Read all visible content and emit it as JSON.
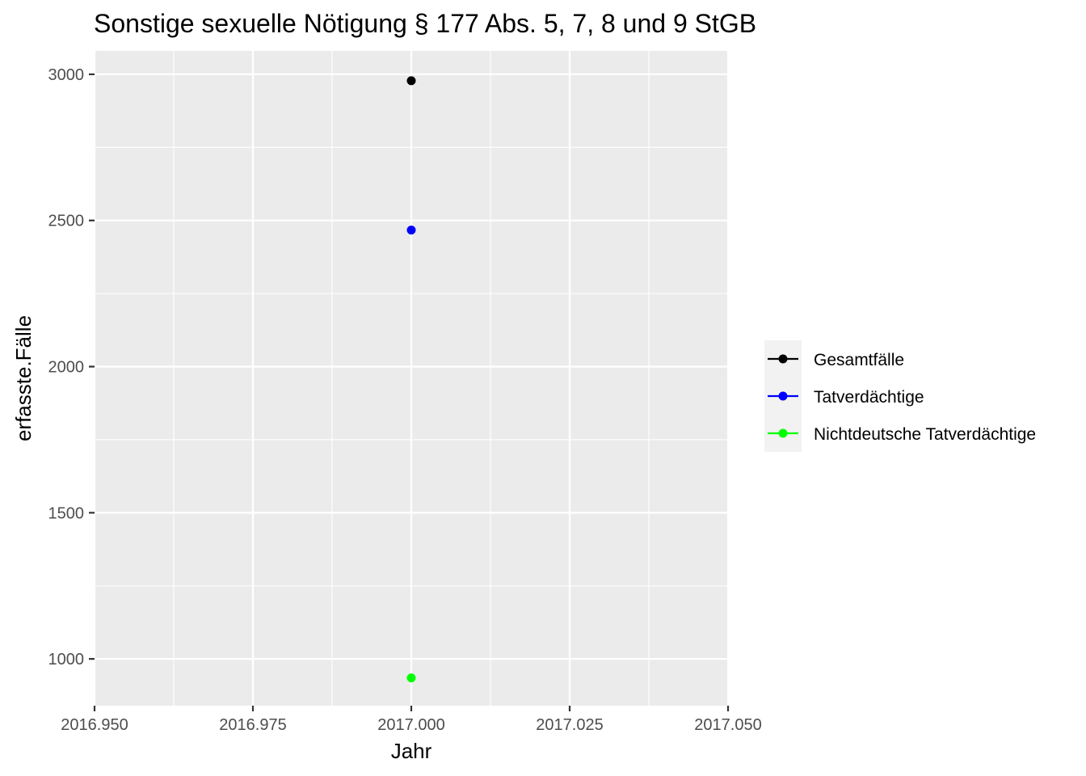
{
  "chart_data": {
    "type": "scatter",
    "title": "Sonstige sexuelle Nötigung § 177 Abs. 5, 7, 8 und 9 StGB",
    "xlabel": "Jahr",
    "ylabel": "erfasste.Fälle",
    "xlim": [
      2016.95,
      2017.05
    ],
    "ylim": [
      840,
      3080
    ],
    "x_ticks": [
      2016.95,
      2016.975,
      2017.0,
      2017.025,
      2017.05
    ],
    "x_tick_labels": [
      "2016.950",
      "2016.975",
      "2017.000",
      "2017.025",
      "2017.050"
    ],
    "y_ticks": [
      1000,
      1500,
      2000,
      2500,
      3000
    ],
    "y_tick_labels": [
      "1000",
      "1500",
      "2000",
      "2500",
      "3000"
    ],
    "grid": true,
    "legend_position": "right",
    "series": [
      {
        "name": "Gesamtfälle",
        "color": "#000000",
        "x": [
          2017.0
        ],
        "y": [
          2978
        ]
      },
      {
        "name": "Tatverdächtige",
        "color": "#0000ff",
        "x": [
          2017.0
        ],
        "y": [
          2467
        ]
      },
      {
        "name": "Nichtdeutsche Tatverdächtige",
        "color": "#00ff00",
        "x": [
          2017.0
        ],
        "y": [
          935
        ]
      }
    ]
  }
}
